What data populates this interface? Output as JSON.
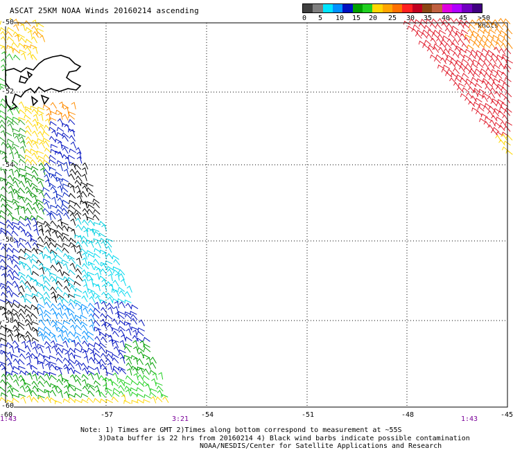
{
  "title": "ASCAT 25KM NOAA Winds 20160214 ascending",
  "colorbar": {
    "colors": [
      "#404040",
      "#7f7f7f",
      "#00e5ff",
      "#0090ff",
      "#0010c0",
      "#00a000",
      "#20d020",
      "#ffd700",
      "#ffa500",
      "#ff7000",
      "#ff2020",
      "#c00020",
      "#8b4513",
      "#c06040",
      "#e000e0",
      "#b000ff",
      "#7000c0",
      "#400080"
    ],
    "labels": [
      "0",
      "5",
      "10",
      "15",
      "20",
      "25",
      "30",
      "35",
      "40",
      "45",
      ">50 knots"
    ]
  },
  "lat_labels": [
    "-50",
    "-52",
    "-54",
    "-56",
    "-58",
    "-60"
  ],
  "lon_labels": [
    "-57",
    "-54",
    "-51",
    "-48",
    "-45"
  ],
  "corner_lon_left": "-60",
  "time_labels": [
    "1:43",
    "3:21",
    "1:43"
  ],
  "notes": {
    "line1": "Note: 1) Times are GMT 2)Times along bottom correspond to measurement at ~55S",
    "line2": "3)Data buffer is 22 hrs from 20160214 4) Black wind barbs indicate possible contamination",
    "line3": "NOAA/NESDIS/Center for Satellite Applications and Research"
  },
  "grid": {
    "lon_start": -60,
    "lon_end": -45,
    "lat_start": -50,
    "lat_end": -60
  }
}
